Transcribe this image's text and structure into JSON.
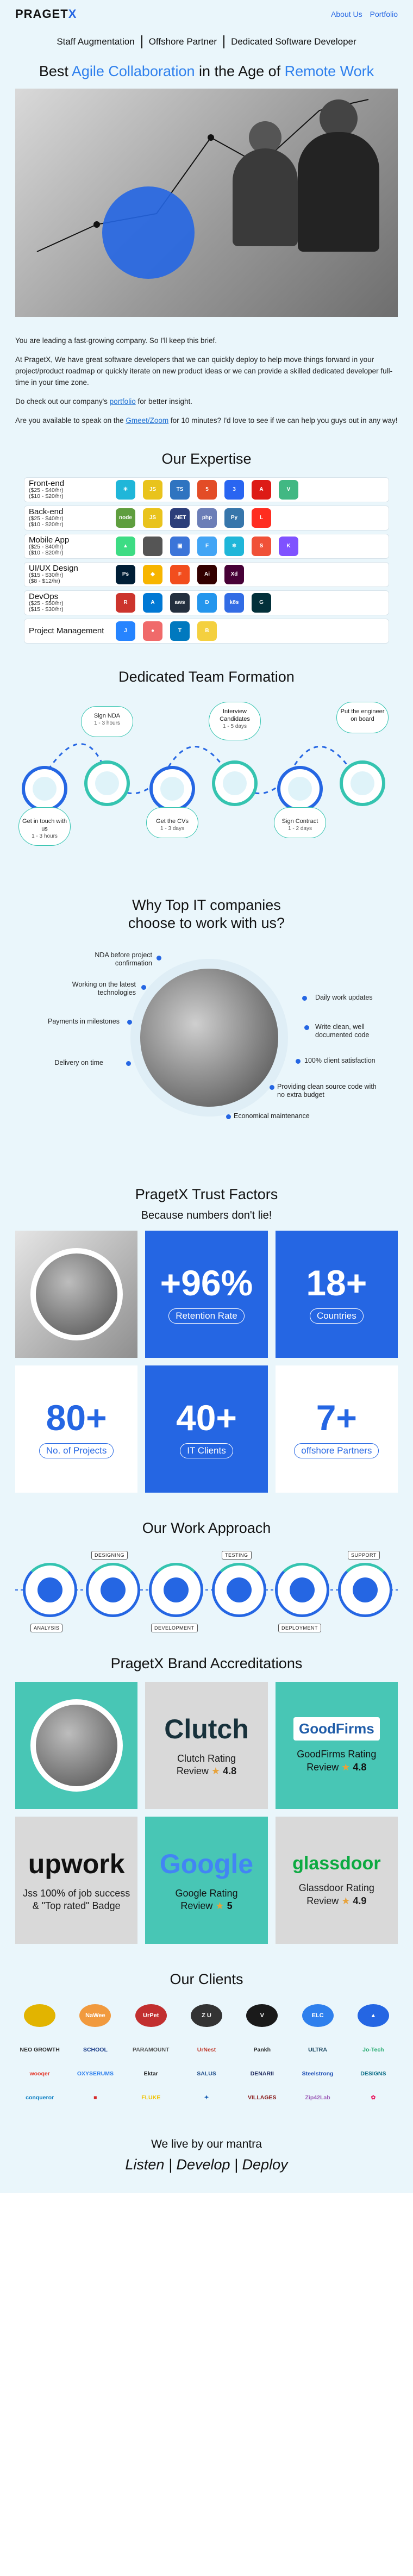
{
  "header": {
    "logo_prefix": "PRAGET",
    "logo_suffix": "X",
    "links": [
      "About Us",
      "Portfolio"
    ]
  },
  "services": [
    "Staff Augmentation",
    "Offshore Partner",
    "Dedicated Software Developer"
  ],
  "headline": {
    "part1": "Best ",
    "hl1": "Agile Collaboration",
    "part2": " in the Age of ",
    "hl2": "Remote Work"
  },
  "intro": {
    "p1": "You are leading a fast-growing company. So I'll keep this brief.",
    "p2": "At PragetX, We have great software developers that we can quickly deploy to help move things forward in your project/product roadmap or quickly iterate on new product ideas or we can provide a skilled dedicated developer full-time in your time zone.",
    "p3_a": "Do check out our company's ",
    "p3_link": "portfolio",
    "p3_b": " for better insight.",
    "p4_a": "Are you available to speak on the ",
    "p4_link": "Gmeet/Zoom",
    "p4_b": " for 10 minutes? I'd love to see if we can help you guys out in any way!"
  },
  "expertise": {
    "title": "Our Expertise",
    "rows": [
      {
        "name": "Front-end",
        "rate1": "($25 - $40/hr)",
        "rate2": "($10 - $20/hr)",
        "icons": [
          {
            "label": "⚛",
            "color": "#1fb6d9"
          },
          {
            "label": "JS",
            "color": "#e9c31c"
          },
          {
            "label": "TS",
            "color": "#2f74c0"
          },
          {
            "label": "5",
            "color": "#e34c26"
          },
          {
            "label": "3",
            "color": "#2965f1"
          },
          {
            "label": "A",
            "color": "#dd1b16"
          },
          {
            "label": "V",
            "color": "#41b883"
          }
        ]
      },
      {
        "name": "Back-end",
        "rate1": "($25 - $40/hr)",
        "rate2": "($10 - $20/hr)",
        "icons": [
          {
            "label": "node",
            "color": "#5f9e3e"
          },
          {
            "label": "JS",
            "color": "#e9c31c"
          },
          {
            "label": ".NET",
            "color": "#2c3e7a"
          },
          {
            "label": "php",
            "color": "#6c7eb7"
          },
          {
            "label": "Py",
            "color": "#3776ab"
          },
          {
            "label": "L",
            "color": "#ff2d20"
          }
        ]
      },
      {
        "name": "Mobile App",
        "rate1": "($25 - $40/hr)",
        "rate2": "($10 - $20/hr)",
        "icons": [
          {
            "label": "▲",
            "color": "#3ddc84"
          },
          {
            "label": "",
            "color": "#555555"
          },
          {
            "label": "▣",
            "color": "#3b75d9"
          },
          {
            "label": "F",
            "color": "#42a5f5"
          },
          {
            "label": "⚛",
            "color": "#1fb6d9"
          },
          {
            "label": "S",
            "color": "#f05138"
          },
          {
            "label": "K",
            "color": "#7f52ff"
          }
        ]
      },
      {
        "name": "UI/UX Design",
        "rate1": "($15 - $30/hr)",
        "rate2": "($8 - $12/hr)",
        "icons": [
          {
            "label": "Ps",
            "color": "#001e36"
          },
          {
            "label": "◆",
            "color": "#f7b500"
          },
          {
            "label": "F",
            "color": "#f24e1e"
          },
          {
            "label": "Ai",
            "color": "#330000"
          },
          {
            "label": "Xd",
            "color": "#470137"
          }
        ]
      },
      {
        "name": "DevOps",
        "rate1": "($25 - $50/hr)",
        "rate2": "($15 - $30/hr)",
        "icons": [
          {
            "label": "R",
            "color": "#cc342d"
          },
          {
            "label": "A",
            "color": "#0078d4"
          },
          {
            "label": "aws",
            "color": "#232f3e"
          },
          {
            "label": "D",
            "color": "#2496ed"
          },
          {
            "label": "k8s",
            "color": "#326ce5"
          },
          {
            "label": "G",
            "color": "#02303a"
          }
        ]
      },
      {
        "name": "Project Management",
        "rate1": "",
        "rate2": "",
        "icons": [
          {
            "label": "J",
            "color": "#2684ff"
          },
          {
            "label": "●",
            "color": "#f06a6a"
          },
          {
            "label": "T",
            "color": "#0079bf"
          },
          {
            "label": "B",
            "color": "#f4d03f"
          }
        ]
      }
    ]
  },
  "team": {
    "title": "Dedicated Team Formation",
    "steps": [
      {
        "label": "Get in touch with us",
        "time": "1 - 3 hours"
      },
      {
        "label": "Sign NDA",
        "time": "1 - 3 hours"
      },
      {
        "label": "Get the CVs",
        "time": "1 - 3 days"
      },
      {
        "label": "Interview Candidates",
        "time": "1 - 5 days"
      },
      {
        "label": "Sign Contract",
        "time": "1 - 2 days"
      },
      {
        "label": "Put the engineer on board",
        "time": ""
      }
    ]
  },
  "why": {
    "title_l1": "Why Top IT companies",
    "title_l2": "choose to work with us?",
    "items": [
      "NDA before project confirmation",
      "Working on the latest technologies",
      "Payments in milestones",
      "Delivery on time",
      "Daily work updates",
      "Write clean, well documented code",
      "100% client satisfaction",
      "Providing clean source code with no extra budget",
      "Economical maintenance"
    ]
  },
  "trust": {
    "title": "PragetX Trust Factors",
    "subtitle": "Because numbers don't lie!",
    "stats": [
      {
        "value": "+96%",
        "label": "Retention Rate"
      },
      {
        "value": "18+",
        "label": "Countries"
      },
      {
        "value": "80+",
        "label": "No. of Projects"
      },
      {
        "value": "40+",
        "label": "IT Clients"
      },
      {
        "value": "7+",
        "label": "offshore Partners"
      }
    ]
  },
  "approach": {
    "title": "Our Work Approach",
    "tags": [
      "ANALYSIS",
      "DESIGNING",
      "DEVELOPMENT",
      "TESTING",
      "DEPLOYMENT",
      "SUPPORT"
    ]
  },
  "accreditations": {
    "title": "PragetX Brand Accreditations",
    "items": [
      {
        "brand": "Clutch",
        "text1": "Clutch Rating",
        "text2": "Review",
        "rating": "4.8"
      },
      {
        "brand": "GoodFirms",
        "text1": "GoodFirms Rating",
        "text2": "Review",
        "rating": "4.8"
      },
      {
        "brand": "upwork",
        "text1": "100% of job success",
        "text2": "& \"Top rated\" Badge",
        "prefix": "Jss"
      },
      {
        "brand": "Google",
        "text1": "Google Rating",
        "text2": "Review",
        "rating": "5"
      },
      {
        "brand": "glassdoor",
        "text1": "Glassdoor Rating",
        "text2": "Review",
        "rating": "4.9"
      }
    ]
  },
  "clients": {
    "title": "Our Clients",
    "row1": [
      {
        "name": "",
        "color": "#e2b400"
      },
      {
        "name": "NaWee",
        "color": "#f19a3e"
      },
      {
        "name": "UrPet",
        "color": "#c22f2f"
      },
      {
        "name": "Z U",
        "color": "#333333"
      },
      {
        "name": "V",
        "color": "#1a1a1a"
      },
      {
        "name": "ELC",
        "color": "#2f80ed"
      },
      {
        "name": "▲",
        "color": "#2566e3"
      }
    ],
    "row2": [
      {
        "name": "NEO GROWTH",
        "color": "#333333"
      },
      {
        "name": "SCHOOL",
        "color": "#1e3f8a"
      },
      {
        "name": "PARAMOUNT",
        "color": "#555555"
      },
      {
        "name": "UrNest",
        "color": "#c0392b"
      },
      {
        "name": "Pankh",
        "color": "#222222"
      },
      {
        "name": "ULTRA",
        "color": "#0f3d57"
      },
      {
        "name": "Jo-Tech",
        "color": "#1fa96b"
      }
    ],
    "row3": [
      {
        "name": "wooqer",
        "color": "#e63b2e"
      },
      {
        "name": "OXYSERUMS",
        "color": "#2f80ed"
      },
      {
        "name": "Ektar",
        "color": "#1a1a1a"
      },
      {
        "name": "SALUS",
        "color": "#29568f"
      },
      {
        "name": "DENARII",
        "color": "#1e2a5e"
      },
      {
        "name": "Steelstrong",
        "color": "#1e4fb5"
      },
      {
        "name": "DESIGNS",
        "color": "#0d6e87"
      }
    ],
    "row4": [
      {
        "name": "conqueror",
        "color": "#0a7dc2"
      },
      {
        "name": "■",
        "color": "#d62828"
      },
      {
        "name": "FLUKE",
        "color": "#f2c200"
      },
      {
        "name": "✦",
        "color": "#1a5fb4"
      },
      {
        "name": "VILLAGES",
        "color": "#8b1e1e"
      },
      {
        "name": "Zip42Lab",
        "color": "#9b59b6"
      },
      {
        "name": "✿",
        "color": "#e91e63"
      }
    ]
  },
  "mantra": {
    "line1": "We live by our mantra",
    "line2": "Listen | Develop | Deploy"
  }
}
